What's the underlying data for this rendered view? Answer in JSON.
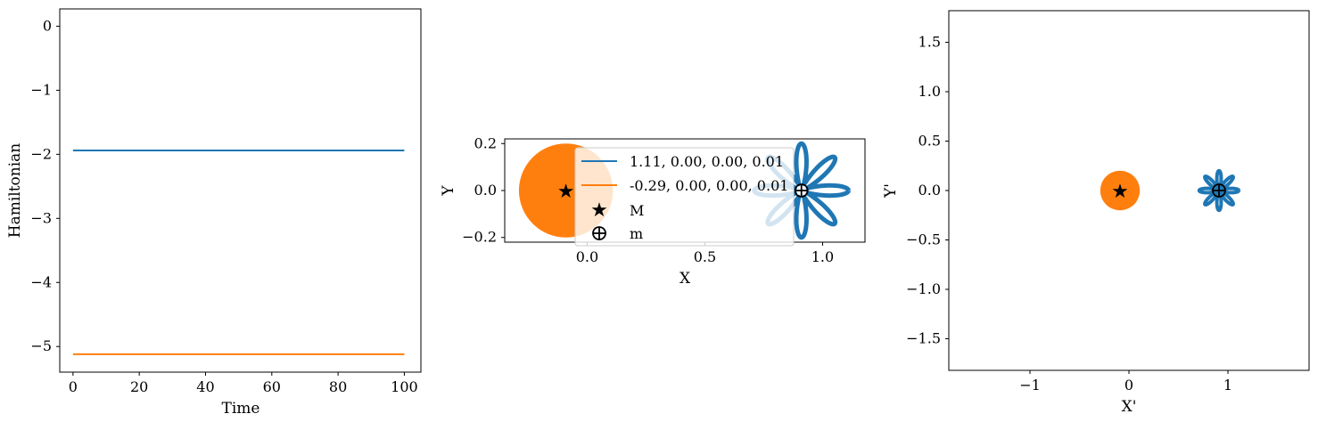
{
  "chart_data": [
    {
      "type": "line",
      "xlabel": "Time",
      "ylabel": "Hamiltonian",
      "xlim": [
        -4,
        105
      ],
      "ylim": [
        -5.4,
        0.27
      ],
      "xticks": [
        0,
        20,
        40,
        60,
        80,
        100
      ],
      "yticks": [
        0,
        -1,
        -2,
        -3,
        -4,
        -5
      ],
      "xtick_labels": [
        "0",
        "20",
        "40",
        "60",
        "80",
        "100"
      ],
      "ytick_labels": [
        "0",
        "−1",
        "−2",
        "−3",
        "−4",
        "−5"
      ],
      "series": [
        {
          "color": "#1f77b4",
          "x": [
            0,
            100
          ],
          "y": [
            -1.94,
            -1.94
          ]
        },
        {
          "color": "#ff7f0e",
          "x": [
            0,
            100
          ],
          "y": [
            -5.12,
            -5.12
          ]
        }
      ]
    },
    {
      "type": "scatter",
      "xlabel": "X",
      "ylabel": "Y",
      "xlim": [
        -0.35,
        1.18
      ],
      "ylim": [
        -0.22,
        0.22
      ],
      "xticks": [
        0.0,
        0.5,
        1.0
      ],
      "yticks": [
        0.2,
        0.0,
        -0.2
      ],
      "xtick_labels": [
        "0.0",
        "0.5",
        "1.0"
      ],
      "ytick_labels": [
        "0.2",
        "0.0",
        "−0.2"
      ],
      "legend_position": "upper-center",
      "legend": [
        {
          "label": "1.11, 0.00, 0.00, 0.01",
          "color": "#1f77b4",
          "marker": "line"
        },
        {
          "label": "-0.29, 0.00, 0.00, 0.01",
          "color": "#ff7f0e",
          "marker": "line"
        },
        {
          "label": "M",
          "color": "#000000",
          "marker": "star"
        },
        {
          "label": "m",
          "color": "#000000",
          "marker": "circle-plus"
        }
      ],
      "bodies": [
        {
          "name": "M",
          "x": -0.09,
          "y": 0.0,
          "radius": 0.2,
          "color": "#ff7f0e"
        },
        {
          "name": "m",
          "x": 0.91,
          "y": 0.0,
          "color": "#1f77b4"
        }
      ],
      "orbit": {
        "center_x": 0.91,
        "r_min": 0.03,
        "r_max": 0.2,
        "lobes": 8,
        "color": "#1f77b4"
      }
    },
    {
      "type": "scatter",
      "xlabel": "X'",
      "ylabel": "Y'",
      "xlim": [
        -1.82,
        1.82
      ],
      "ylim": [
        -1.82,
        1.82
      ],
      "xticks": [
        -1,
        0,
        1
      ],
      "yticks": [
        1.5,
        1.0,
        0.5,
        0.0,
        -0.5,
        -1.0,
        -1.5
      ],
      "xtick_labels": [
        "−1",
        "0",
        "1"
      ],
      "ytick_labels": [
        "1.5",
        "1.0",
        "0.5",
        "0.0",
        "−0.5",
        "−1.0",
        "−1.5"
      ],
      "bodies": [
        {
          "name": "M",
          "x": -0.09,
          "y": 0.0,
          "radius": 0.2,
          "color": "#ff7f0e"
        },
        {
          "name": "m",
          "x": 0.91,
          "y": 0.0,
          "color": "#1f77b4"
        }
      ],
      "orbit": {
        "center_x": 0.91,
        "r_min": 0.03,
        "r_max": 0.2,
        "lobes": 8,
        "color": "#1f77b4"
      }
    }
  ]
}
